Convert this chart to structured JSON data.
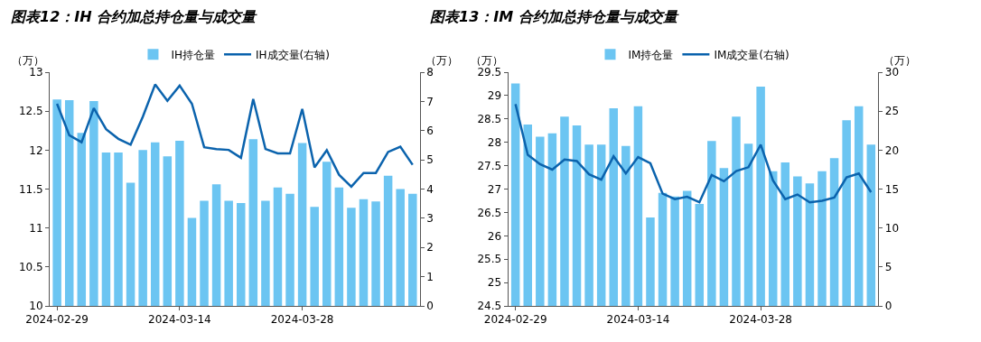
{
  "chart_data": [
    {
      "type": "bar",
      "title": "图表12：IH 合约加总持仓量与成交量",
      "ylabel": "（万）",
      "y2label": "（万）",
      "categories": [
        "2024-02-29",
        null,
        null,
        null,
        null,
        null,
        null,
        null,
        null,
        null,
        "2024-03-14",
        null,
        null,
        null,
        null,
        null,
        null,
        null,
        null,
        null,
        "2024-03-28",
        null,
        null,
        null,
        null,
        null,
        null,
        null,
        null,
        null
      ],
      "series": [
        {
          "name": "IH持仓量",
          "color": "#6cc5f2",
          "values": [
            12.65,
            12.64,
            12.22,
            12.63,
            11.97,
            11.97,
            11.58,
            12.0,
            12.1,
            11.92,
            12.12,
            11.13,
            11.35,
            11.56,
            11.35,
            11.32,
            12.14,
            11.35,
            11.52,
            11.44,
            12.09,
            11.27,
            11.85,
            11.52,
            11.26,
            11.37,
            11.34,
            11.67,
            11.5,
            11.44
          ]
        },
        {
          "name": "IH成交量(右轴)",
          "type": "line",
          "axis": "y2",
          "color": "#0b63ad",
          "values": [
            6.92,
            5.84,
            5.6,
            6.77,
            6.05,
            5.72,
            5.52,
            6.48,
            7.58,
            7.02,
            7.54,
            6.92,
            5.43,
            5.37,
            5.34,
            5.07,
            7.08,
            5.37,
            5.22,
            5.22,
            6.74,
            4.74,
            5.33,
            4.49,
            4.08,
            4.55,
            4.55,
            5.27,
            5.45,
            4.83
          ]
        }
      ],
      "ylim": [
        10,
        13
      ],
      "yticks": [
        10,
        10.5,
        11,
        11.5,
        12,
        12.5,
        13
      ],
      "y2lim": [
        0,
        8
      ],
      "y2ticks": [
        0,
        1,
        2,
        3,
        4,
        5,
        6,
        7,
        8
      ],
      "legend": "top",
      "marker": "none",
      "line_style": "solid"
    },
    {
      "type": "bar",
      "title": "图表13：IM 合约加总持仓量与成交量",
      "ylabel": "（万）",
      "y2label": "（万）",
      "categories": [
        "2024-02-29",
        null,
        null,
        null,
        null,
        null,
        null,
        null,
        null,
        null,
        "2024-03-14",
        null,
        null,
        null,
        null,
        null,
        null,
        null,
        null,
        null,
        "2024-03-28",
        null,
        null,
        null,
        null,
        null,
        null,
        null,
        null,
        null
      ],
      "series": [
        {
          "name": "IM持仓量",
          "color": "#6cc5f2",
          "values": [
            29.26,
            28.38,
            28.12,
            28.19,
            28.55,
            28.36,
            27.95,
            27.95,
            28.73,
            27.92,
            28.77,
            26.39,
            26.92,
            26.84,
            26.96,
            26.68,
            28.03,
            27.45,
            28.55,
            27.97,
            29.19,
            27.38,
            27.57,
            27.27,
            27.12,
            27.38,
            27.66,
            28.47,
            28.77,
            27.95
          ]
        },
        {
          "name": "IM成交量(右轴)",
          "type": "line",
          "axis": "y2",
          "color": "#0b63ad",
          "values": [
            25.9,
            19.4,
            18.2,
            17.5,
            18.8,
            18.6,
            16.9,
            16.2,
            19.2,
            17.0,
            19.1,
            18.3,
            14.4,
            13.7,
            14.0,
            13.3,
            16.8,
            16.0,
            17.3,
            17.8,
            20.7,
            16.1,
            13.7,
            14.3,
            13.3,
            13.5,
            13.9,
            16.5,
            17.0,
            14.6
          ]
        }
      ],
      "ylim": [
        24.5,
        29.5
      ],
      "yticks": [
        24.5,
        25,
        25.5,
        26,
        26.5,
        27,
        27.5,
        28,
        28.5,
        29,
        29.5
      ],
      "y2lim": [
        0,
        30
      ],
      "y2ticks": [
        0,
        5,
        10,
        15,
        20,
        25,
        30
      ],
      "legend": "top",
      "marker": "none",
      "line_style": "solid"
    }
  ]
}
